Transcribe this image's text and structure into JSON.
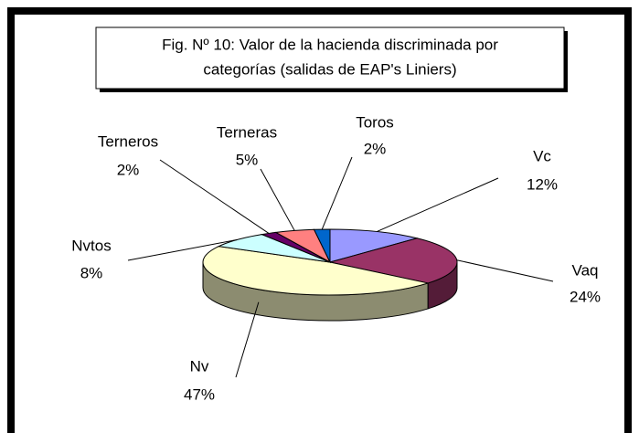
{
  "chart_data": {
    "type": "pie3d",
    "title": [
      "Fig. Nº 10: Valor de la hacienda discriminada por",
      "categorías (salidas de EAP's Liniers)"
    ],
    "categories": [
      "Vc",
      "Vaq",
      "Nv",
      "Nvtos",
      "Terneros",
      "Terneras",
      "Toros"
    ],
    "values": [
      12,
      24,
      47,
      8,
      2,
      5,
      2
    ],
    "value_labels": [
      "12%",
      "24%",
      "47%",
      "8%",
      "2%",
      "5%",
      "2%"
    ],
    "colors": [
      "#9999ff",
      "#993366",
      "#ffffcc",
      "#ccffff",
      "#660066",
      "#ff8080",
      "#0066cc"
    ]
  }
}
